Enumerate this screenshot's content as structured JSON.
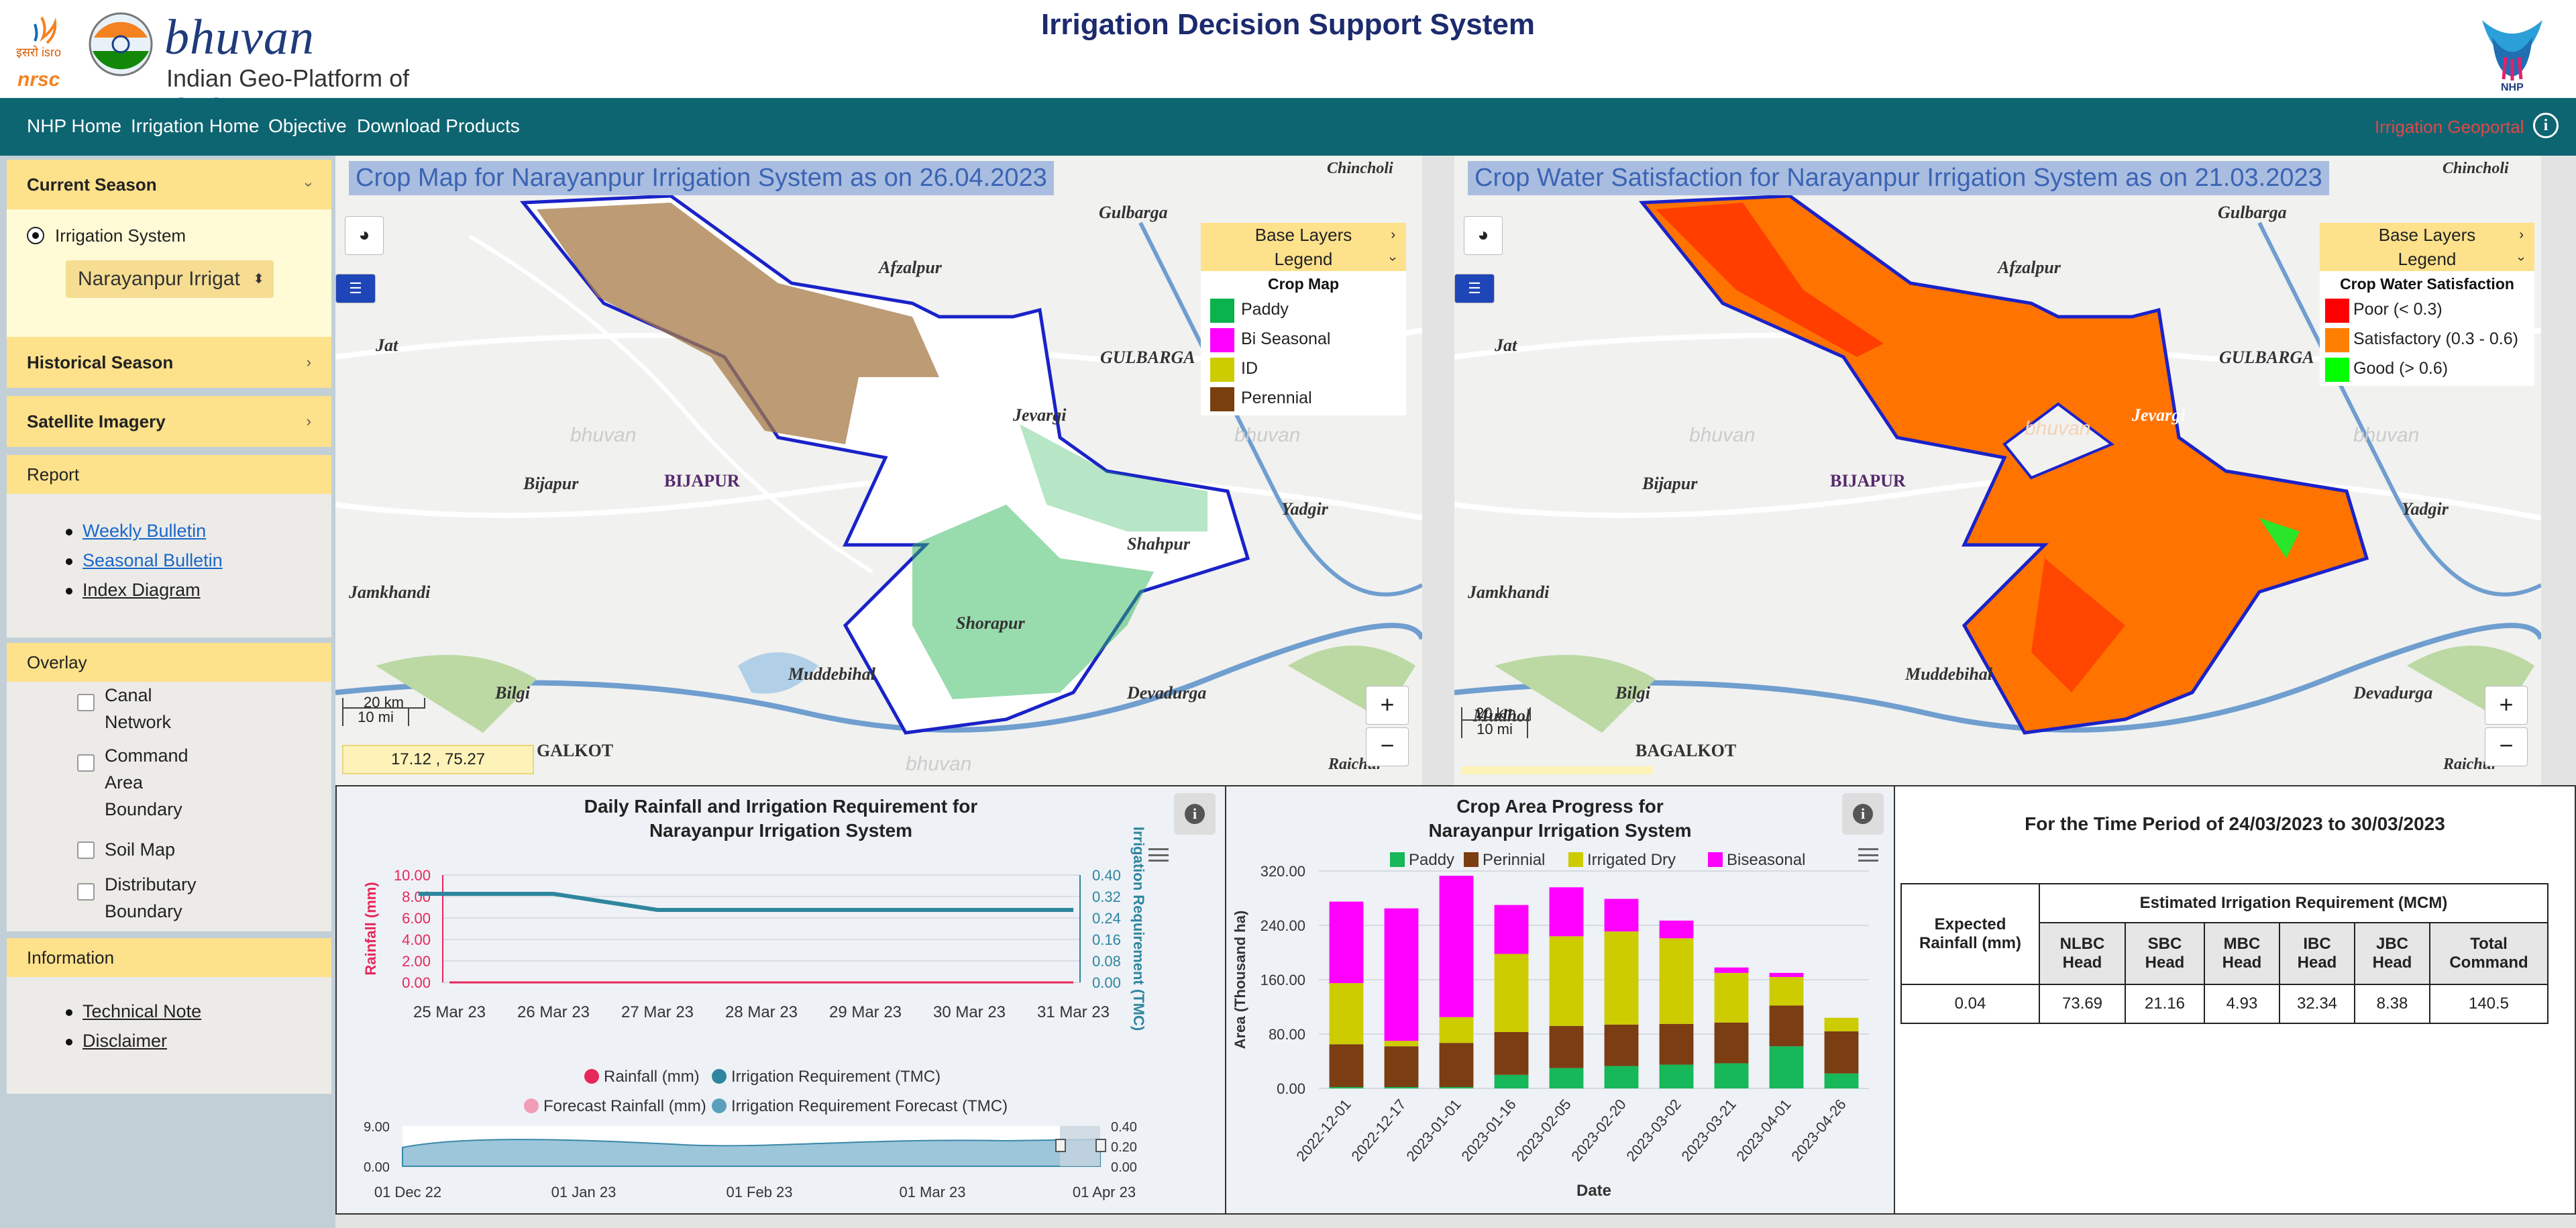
{
  "header": {
    "title": "Irrigation Decision Support System",
    "brand": "bhuvan",
    "subtitle": "Indian Geo-Platform of ISRO",
    "org_hi": "इसरो isro",
    "org": "nrsc",
    "nhp": "NHP"
  },
  "nav": {
    "items": [
      "NHP Home",
      "Irrigation Home",
      "Objective",
      "Download Products"
    ],
    "geoportal": "Irrigation Geoportal",
    "info": "i"
  },
  "sidebar": {
    "current_season": "Current Season",
    "irrigation_system": "Irrigation System",
    "system_select": "Narayanpur Irrigat",
    "historical_season": "Historical Season",
    "satellite_imagery": "Satellite Imagery",
    "report": "Report",
    "report_links": [
      "Weekly Bulletin",
      "Seasonal Bulletin",
      "Index Diagram"
    ],
    "overlay": "Overlay",
    "overlay_items": [
      [
        "Canal",
        "Network"
      ],
      [
        "Command",
        "Area",
        "Boundary"
      ],
      [
        "Soil Map"
      ],
      [
        "Distributary",
        "Boundary"
      ]
    ],
    "information": "Information",
    "info_links": [
      "Technical Note",
      "Disclaimer"
    ]
  },
  "map1": {
    "title": "Crop Map for Narayanpur Irrigation System as on 26.04.2023",
    "base_layers": "Base Layers",
    "legend": "Legend",
    "legend_title": "Crop Map",
    "legend_items": [
      {
        "label": "Paddy",
        "color": "#0bb34c"
      },
      {
        "label": "Bi Seasonal",
        "color": "#ff00ff"
      },
      {
        "label": "ID",
        "color": "#cccc00"
      },
      {
        "label": "Perennial",
        "color": "#7a3f0f"
      }
    ],
    "coords": "17.12 , 75.27",
    "scale_km": "20 km",
    "scale_mi": "10 mi",
    "places": [
      "Chincholi",
      "Gulbarga",
      "Afzalpur",
      "Jat",
      "GULBARGA",
      "Bijapur",
      "BIJAPUR",
      "Jevargi",
      "Yadgir",
      "Jamkhandi",
      "Shahpur",
      "Shorapur",
      "Muddebihal",
      "Bilgi",
      "Devadurga",
      "GALKOT",
      "Raichur",
      "bhuvan"
    ]
  },
  "map2": {
    "title": "Crop Water Satisfaction for Narayanpur Irrigation System as on 21.03.2023",
    "base_layers": "Base Layers",
    "legend": "Legend",
    "legend_title": "Crop Water Satisfaction",
    "legend_items": [
      {
        "label": "Poor (< 0.3)",
        "color": "#ff0000"
      },
      {
        "label": "Satisfactory (0.3 - 0.6)",
        "color": "#ff8000"
      },
      {
        "label": "Good (> 0.6)",
        "color": "#00ff00"
      }
    ],
    "scale_km": "20 km",
    "scale_mi": "10 mi",
    "places": [
      "Chincholi",
      "Gulbarga",
      "Afzalpur",
      "Jat",
      "GULBARGA",
      "Bijapur",
      "BIJAPUR",
      "Jevargi",
      "Yadgir",
      "Jamkhandi",
      "Shahpur",
      "Shorapur",
      "Muddebihal",
      "Mudhol",
      "Bilgi",
      "Devadurga",
      "BAGALKOT",
      "Raichur",
      "bhuvan"
    ]
  },
  "rain_panel": {
    "title": "Daily Rainfall and Irrigation Requirement for",
    "title2": "Narayanpur Irrigation System",
    "legend": [
      "Rainfall (mm)",
      "Irrigation Requirement (TMC)",
      "Forecast Rainfall (mm)",
      "Irrigation Requirement Forecast (TMC)"
    ],
    "nav_dates": [
      "01 Dec 22",
      "01 Jan 23",
      "01 Feb 23",
      "01 Mar 23",
      "01 Apr 23"
    ],
    "nav_left": [
      "9.00",
      "0.00"
    ],
    "nav_right": [
      "0.40",
      "0.20",
      "0.00"
    ]
  },
  "crop_panel": {
    "title": "Crop Area Progress for",
    "title2": "Narayanpur Irrigation System",
    "legend": [
      "Paddy",
      "Perinnial",
      "Irrigated Dry",
      "Biseasonal"
    ]
  },
  "req_panel": {
    "title": "For the Time Period of 24/03/2023 to 30/03/2023",
    "expected": "Expected Rainfall (mm)",
    "estimated": "Estimated Irrigation Requirement (MCM)",
    "cols": [
      "NLBC Head",
      "SBC Head",
      "MBC Head",
      "IBC Head",
      "JBC Head",
      "Total Command"
    ],
    "values": [
      "0.04",
      "73.69",
      "21.16",
      "4.93",
      "32.34",
      "8.38",
      "140.5"
    ]
  },
  "chart_data": [
    {
      "type": "line",
      "title": "Daily Rainfall and Irrigation Requirement for Narayanpur Irrigation System",
      "categories": [
        "25 Mar 23",
        "26 Mar 23",
        "27 Mar 23",
        "28 Mar 23",
        "29 Mar 23",
        "30 Mar 23",
        "31 Mar 23"
      ],
      "ylabel": "Rainfall (mm)",
      "ylim": [
        0,
        10
      ],
      "yticks": [
        "0.00",
        "2.00",
        "4.00",
        "6.00",
        "8.00",
        "10.00"
      ],
      "y2label": "Irrigation Requirement (TMC)",
      "y2lim": [
        0,
        0.4
      ],
      "y2ticks": [
        "0.00",
        "0.08",
        "0.16",
        "0.24",
        "0.32",
        "0.40"
      ],
      "series": [
        {
          "name": "Rainfall (mm)",
          "values": [
            0,
            0,
            0,
            0,
            0,
            0,
            0
          ],
          "color": "#e8275a"
        },
        {
          "name": "Irrigation Requirement (TMC)",
          "axis": "y2",
          "x": [
            -0.3,
            0,
            1,
            2,
            3,
            4,
            5,
            6
          ],
          "values": [
            0.33,
            0.33,
            0.33,
            0.27,
            0.27,
            0.27,
            0.27,
            0.27
          ],
          "color": "#2e869e"
        }
      ]
    },
    {
      "type": "bar",
      "stacked": true,
      "title": "Crop Area Progress for Narayanpur Irrigation System",
      "categories": [
        "2022-12-01",
        "2022-12-17",
        "2023-01-01",
        "2023-01-16",
        "2023-02-05",
        "2023-02-20",
        "2023-03-02",
        "2023-03-21",
        "2023-04-01",
        "2023-04-26"
      ],
      "xlabel": "Date",
      "ylabel": "Area (Thousand ha)",
      "ylim": [
        0,
        320
      ],
      "yticks": [
        "0.00",
        "80.00",
        "160.00",
        "240.00",
        "320.00"
      ],
      "series": [
        {
          "name": "Paddy",
          "color": "#16b859",
          "values": [
            2,
            2,
            2,
            20,
            30,
            33,
            35,
            37,
            62,
            22
          ]
        },
        {
          "name": "Perinnial",
          "color": "#7b3d12",
          "values": [
            63,
            60,
            65,
            63,
            62,
            61,
            60,
            60,
            60,
            62
          ]
        },
        {
          "name": "Irrigated Dry",
          "color": "#cccc00",
          "values": [
            90,
            8,
            38,
            115,
            132,
            137,
            126,
            73,
            42,
            20
          ]
        },
        {
          "name": "Biseasonal",
          "color": "#ff00ff",
          "values": [
            120,
            195,
            208,
            72,
            72,
            48,
            26,
            8,
            6,
            0
          ]
        }
      ]
    }
  ]
}
